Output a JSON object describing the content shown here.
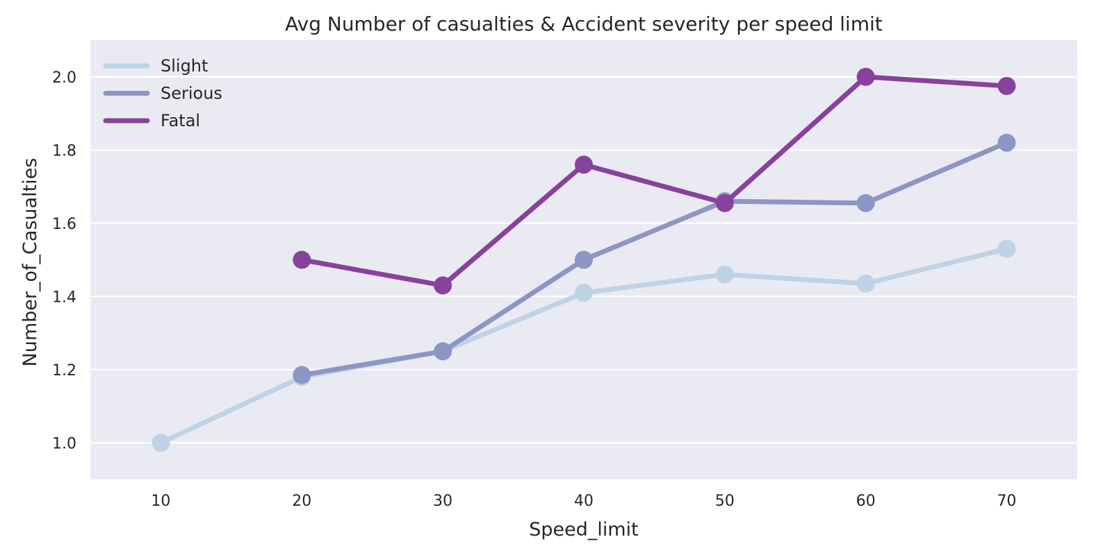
{
  "chart_data": {
    "type": "line",
    "title": "Avg Number of casualties & Accident severity per speed limit",
    "xlabel": "Speed_limit",
    "ylabel": "Number_of_Casualties",
    "categories": [
      "10",
      "20",
      "30",
      "40",
      "50",
      "60",
      "70"
    ],
    "ylim": [
      0.9,
      2.1
    ],
    "yticks": [
      "1.0",
      "1.2",
      "1.4",
      "1.6",
      "1.8",
      "2.0"
    ],
    "grid": true,
    "legend_position": "top-left",
    "colors": {
      "background": "#eaeaf2",
      "grid": "#ffffff"
    },
    "series": [
      {
        "name": "Slight",
        "color": "#bfd3e6",
        "values": [
          1.0,
          1.18,
          1.25,
          1.41,
          1.46,
          1.435,
          1.53
        ]
      },
      {
        "name": "Serious",
        "color": "#8c96c6",
        "values": [
          null,
          1.185,
          1.25,
          1.5,
          1.66,
          1.655,
          1.82
        ]
      },
      {
        "name": "Fatal",
        "color": "#88419d",
        "values": [
          null,
          1.5,
          1.43,
          1.76,
          1.655,
          2.0,
          1.975
        ]
      }
    ]
  }
}
